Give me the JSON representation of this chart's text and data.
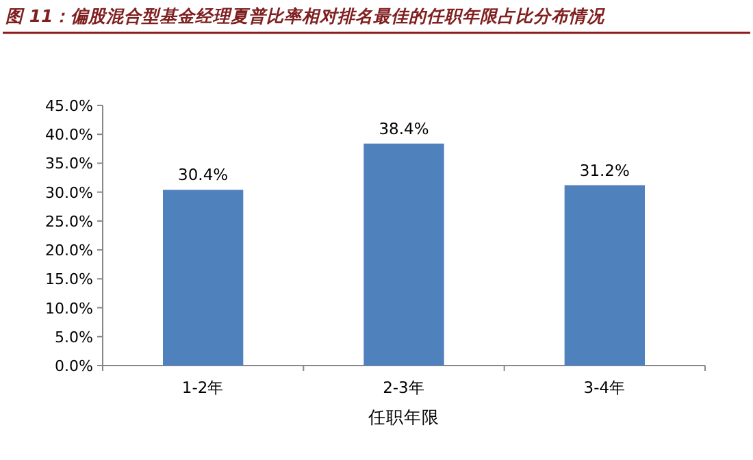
{
  "chart_data": {
    "type": "bar",
    "title": "图 11：偏股混合型基金经理夏普比率相对排名最佳的任职年限占比分布情况",
    "xlabel": "任职年限",
    "categories": [
      "1-2年",
      "2-3年",
      "3-4年"
    ],
    "values": [
      30.4,
      38.4,
      31.2
    ],
    "color": "#4f81bd",
    "value_labels": [
      "30.4%",
      "38.4%",
      "31.2%"
    ],
    "ylim": [
      0,
      45
    ],
    "yticks": [
      {
        "value": 0,
        "label": "0.0%"
      },
      {
        "value": 5,
        "label": "5.0%"
      },
      {
        "value": 10,
        "label": "10.0%"
      },
      {
        "value": 15,
        "label": "15.0%"
      },
      {
        "value": 20,
        "label": "20.0%"
      },
      {
        "value": 25,
        "label": "25.0%"
      },
      {
        "value": 30,
        "label": "30.0%"
      },
      {
        "value": 35,
        "label": "35.0%"
      },
      {
        "value": 40,
        "label": "40.0%"
      },
      {
        "value": 45,
        "label": "45.0%"
      }
    ],
    "grid": false
  }
}
